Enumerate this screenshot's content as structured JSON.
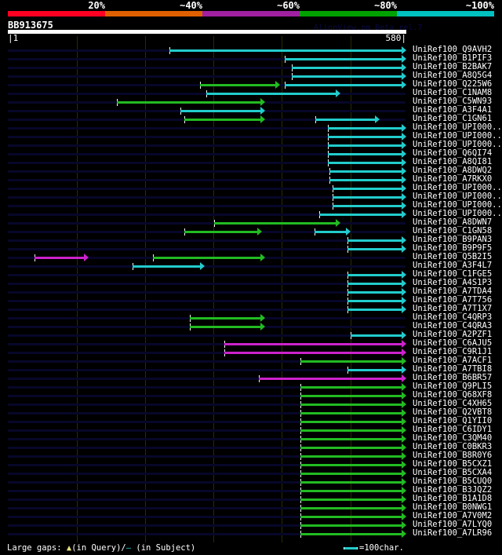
{
  "colors": {
    "identity_bins": [
      "#ff0022",
      "#e06000",
      "#a020a0",
      "#00a000",
      "#00c0c0"
    ],
    "green": "#22bb22",
    "cyan": "#22cccc",
    "magenta": "#cc22cc"
  },
  "identity_legend": [
    "20%",
    "~40%",
    "~60%",
    "~80%",
    "~100%"
  ],
  "query": {
    "name": "BB913675",
    "start_label": "|1",
    "end_label": "580|",
    "length": 580
  },
  "watermark": "AlignView.pm Beta rel.7",
  "footer": {
    "prefix": "Large gaps:",
    "query_gap": "▲",
    "in_query": "(in Query)/",
    "subject_gap": "–",
    "in_subject": " (in Subject)",
    "scale_label": "=100char."
  },
  "hits": [
    {
      "label": "UniRef100_Q9AVH2",
      "segs": [
        [
          236,
          580,
          "cyan"
        ]
      ]
    },
    {
      "label": "UniRef100_B1PIF3",
      "segs": [
        [
          404,
          580,
          "cyan"
        ]
      ]
    },
    {
      "label": "UniRef100_B2BAK7",
      "segs": [
        [
          414,
          580,
          "cyan"
        ]
      ]
    },
    {
      "label": "UniRef100_A8Q5G4",
      "segs": [
        [
          414,
          580,
          "cyan"
        ]
      ]
    },
    {
      "label": "UniRef100_Q225W6",
      "segs": [
        [
          281,
          396,
          "green"
        ],
        [
          404,
          580,
          "cyan"
        ]
      ]
    },
    {
      "label": "UniRef100_C1NAM8",
      "segs": [
        [
          290,
          484,
          "cyan"
        ]
      ]
    },
    {
      "label": "UniRef100_C5WN93",
      "segs": [
        [
          160,
          374,
          "green"
        ]
      ]
    },
    {
      "label": "UniRef100_A3F4A1",
      "segs": [
        [
          252,
          374,
          "cyan"
        ]
      ]
    },
    {
      "label": "UniRef100_C1GN61",
      "segs": [
        [
          258,
          374,
          "green"
        ],
        [
          449,
          541,
          "cyan"
        ]
      ]
    },
    {
      "label": "UniRef100_UPI000..",
      "segs": [
        [
          467,
          580,
          "cyan"
        ]
      ]
    },
    {
      "label": "UniRef100_UPI000..",
      "segs": [
        [
          467,
          580,
          "cyan"
        ]
      ]
    },
    {
      "label": "UniRef100_UPI000..",
      "segs": [
        [
          467,
          580,
          "cyan"
        ]
      ]
    },
    {
      "label": "UniRef100_Q6QI74",
      "segs": [
        [
          467,
          580,
          "cyan"
        ]
      ]
    },
    {
      "label": "UniRef100_A8QI81",
      "segs": [
        [
          467,
          580,
          "cyan"
        ]
      ]
    },
    {
      "label": "UniRef100_A8DWQ2",
      "segs": [
        [
          469,
          580,
          "cyan"
        ]
      ]
    },
    {
      "label": "UniRef100_A7RKX0",
      "segs": [
        [
          469,
          580,
          "cyan"
        ]
      ]
    },
    {
      "label": "UniRef100_UPI000..",
      "segs": [
        [
          474,
          580,
          "cyan"
        ]
      ]
    },
    {
      "label": "UniRef100_UPI000..",
      "segs": [
        [
          474,
          580,
          "cyan"
        ]
      ]
    },
    {
      "label": "UniRef100_UPI000..",
      "segs": [
        [
          474,
          580,
          "cyan"
        ]
      ]
    },
    {
      "label": "UniRef100_UPI000..",
      "segs": [
        [
          454,
          580,
          "cyan"
        ]
      ]
    },
    {
      "label": "UniRef100_A8DWN7",
      "segs": [
        [
          301,
          484,
          "green"
        ]
      ]
    },
    {
      "label": "UniRef100_C1GN58",
      "segs": [
        [
          258,
          370,
          "green"
        ],
        [
          447,
          499,
          "cyan"
        ]
      ]
    },
    {
      "label": "UniRef100_B9PAN3",
      "segs": [
        [
          496,
          580,
          "cyan"
        ]
      ]
    },
    {
      "label": "UniRef100_B9P9F5",
      "segs": [
        [
          496,
          580,
          "cyan"
        ]
      ]
    },
    {
      "label": "UniRef100_Q5B2I5",
      "segs": [
        [
          40,
          117,
          "magenta"
        ],
        [
          212,
          374,
          "green"
        ]
      ]
    },
    {
      "label": "UniRef100_A3F4L7",
      "segs": [
        [
          183,
          286,
          "cyan"
        ]
      ]
    },
    {
      "label": "UniRef100_C1FGE5",
      "segs": [
        [
          496,
          580,
          "cyan"
        ]
      ]
    },
    {
      "label": "UniRef100_A4S1P3",
      "segs": [
        [
          496,
          580,
          "cyan"
        ]
      ]
    },
    {
      "label": "UniRef100_A7TDA4",
      "segs": [
        [
          496,
          580,
          "cyan"
        ]
      ]
    },
    {
      "label": "UniRef100_A7T756",
      "segs": [
        [
          496,
          580,
          "cyan"
        ]
      ]
    },
    {
      "label": "UniRef100_A7T1X7",
      "segs": [
        [
          496,
          580,
          "cyan"
        ]
      ]
    },
    {
      "label": "UniRef100_C4QRP3",
      "segs": [
        [
          266,
          374,
          "green"
        ]
      ]
    },
    {
      "label": "UniRef100_C4QRA3",
      "segs": [
        [
          266,
          374,
          "green"
        ]
      ]
    },
    {
      "label": "UniRef100_A2PZF1",
      "segs": [
        [
          500,
          580,
          "cyan"
        ]
      ]
    },
    {
      "label": "UniRef100_C6AJU5",
      "segs": [
        [
          316,
          580,
          "magenta"
        ]
      ]
    },
    {
      "label": "UniRef100_C9R1J1",
      "segs": [
        [
          316,
          580,
          "magenta"
        ]
      ]
    },
    {
      "label": "UniRef100_A7ACF1",
      "segs": [
        [
          427,
          580,
          "green"
        ]
      ]
    },
    {
      "label": "UniRef100_A7TBI8",
      "segs": [
        [
          496,
          580,
          "cyan"
        ]
      ]
    },
    {
      "label": "UniRef100_B6BR57",
      "segs": [
        [
          366,
          580,
          "magenta"
        ]
      ]
    },
    {
      "label": "UniRef100_Q9PLI5",
      "segs": [
        [
          427,
          580,
          "green"
        ]
      ]
    },
    {
      "label": "UniRef100_Q68XF8",
      "segs": [
        [
          427,
          580,
          "green"
        ]
      ]
    },
    {
      "label": "UniRef100_C4XH65",
      "segs": [
        [
          427,
          580,
          "green"
        ]
      ]
    },
    {
      "label": "UniRef100_Q2VBT8",
      "segs": [
        [
          427,
          580,
          "green"
        ]
      ]
    },
    {
      "label": "UniRef100_Q1YII0",
      "segs": [
        [
          427,
          580,
          "green"
        ]
      ]
    },
    {
      "label": "UniRef100_C6IDY1",
      "segs": [
        [
          427,
          580,
          "green"
        ]
      ]
    },
    {
      "label": "UniRef100_C3QM40",
      "segs": [
        [
          427,
          580,
          "green"
        ]
      ]
    },
    {
      "label": "UniRef100_C0BKR3",
      "segs": [
        [
          427,
          580,
          "green"
        ]
      ]
    },
    {
      "label": "UniRef100_B8R0Y6",
      "segs": [
        [
          427,
          580,
          "green"
        ]
      ]
    },
    {
      "label": "UniRef100_B5CXZ1",
      "segs": [
        [
          427,
          580,
          "green"
        ]
      ]
    },
    {
      "label": "UniRef100_B5CXA4",
      "segs": [
        [
          427,
          580,
          "green"
        ]
      ]
    },
    {
      "label": "UniRef100_B5CUQ0",
      "segs": [
        [
          427,
          580,
          "green"
        ]
      ]
    },
    {
      "label": "UniRef100_B3JQZ2",
      "segs": [
        [
          427,
          580,
          "green"
        ]
      ]
    },
    {
      "label": "UniRef100_B1A1D8",
      "segs": [
        [
          427,
          580,
          "green"
        ]
      ]
    },
    {
      "label": "UniRef100_B0NWG1",
      "segs": [
        [
          427,
          580,
          "green"
        ]
      ]
    },
    {
      "label": "UniRef100_A7V0M2",
      "segs": [
        [
          427,
          580,
          "green"
        ]
      ]
    },
    {
      "label": "UniRef100_A7LYQ0",
      "segs": [
        [
          427,
          580,
          "green"
        ]
      ]
    },
    {
      "label": "UniRef100_A7LR96",
      "segs": [
        [
          427,
          580,
          "green"
        ]
      ]
    }
  ]
}
